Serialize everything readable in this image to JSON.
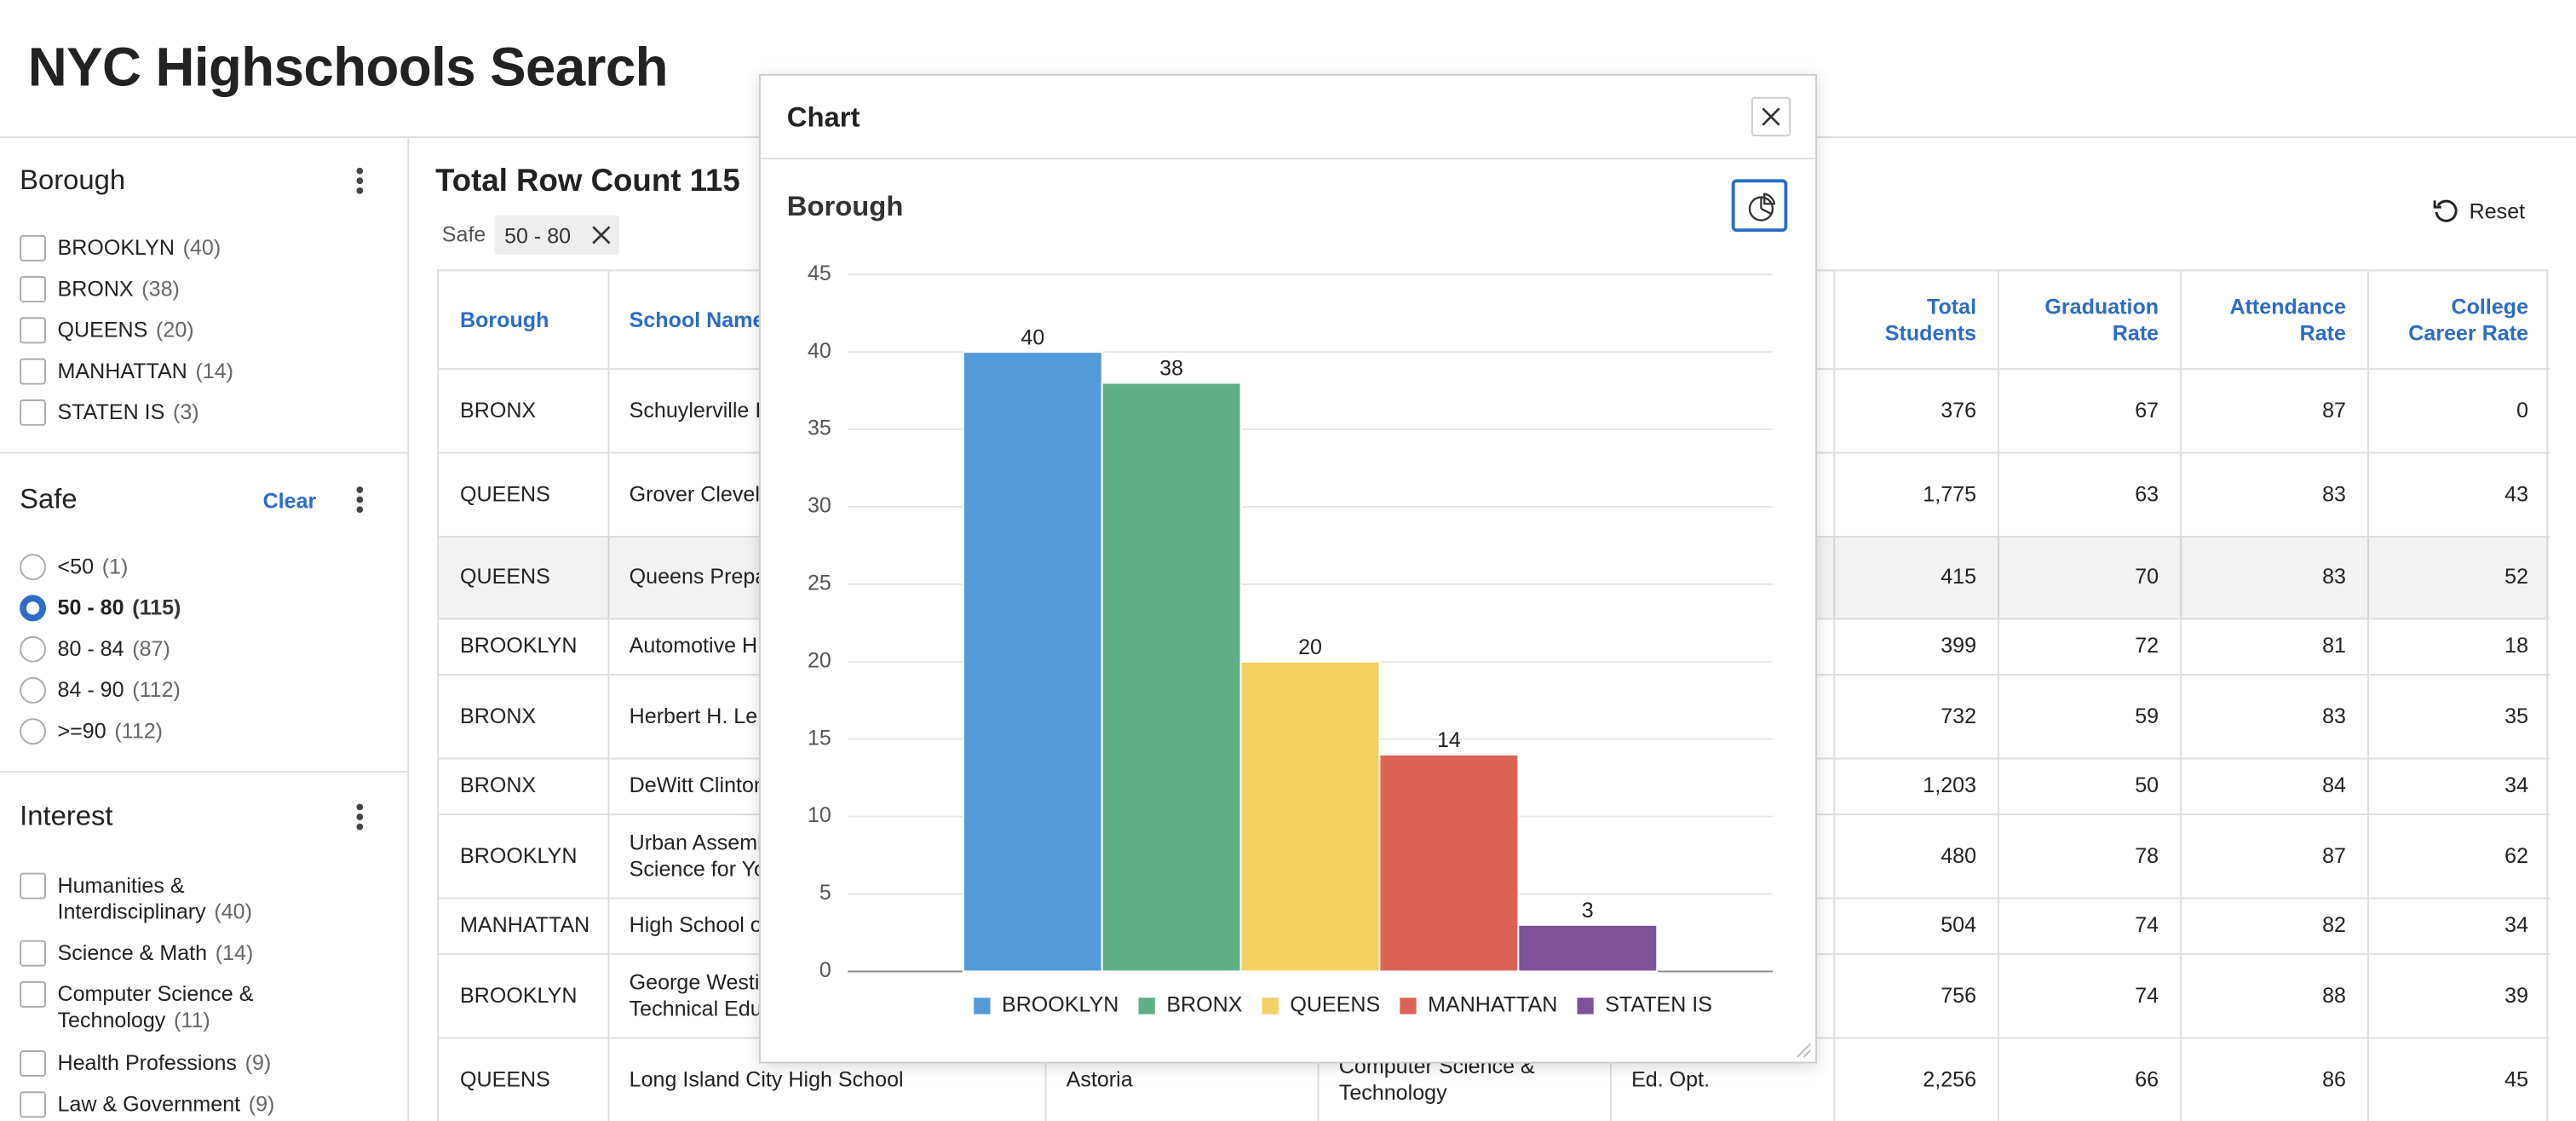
{
  "header": {
    "title": "NYC Highschools Search"
  },
  "facets": [
    {
      "title": "Borough",
      "options": [
        {
          "label": "BROOKLYN",
          "count": "(40)"
        },
        {
          "label": "BRONX",
          "count": "(38)"
        },
        {
          "label": "QUEENS",
          "count": "(20)"
        },
        {
          "label": "MANHATTAN",
          "count": "(14)"
        },
        {
          "label": "STATEN IS",
          "count": "(3)"
        }
      ]
    },
    {
      "title": "Safe",
      "action": "Clear",
      "selected": 1,
      "options": [
        {
          "label": "<50",
          "count": "(1)"
        },
        {
          "label": "50 - 80",
          "count": "(115)"
        },
        {
          "label": "80 - 84",
          "count": "(87)"
        },
        {
          "label": "84 - 90",
          "count": "(112)"
        },
        {
          "label": ">=90",
          "count": "(112)"
        }
      ]
    },
    {
      "title": "Interest",
      "options": [
        {
          "label": "Humanities & Interdisciplinary",
          "count": "(40)"
        },
        {
          "label": "Science & Math",
          "count": "(14)"
        },
        {
          "label": "Computer Science & Technology",
          "count": "(11)"
        },
        {
          "label": "Health Professions",
          "count": "(9)"
        },
        {
          "label": "Law & Government",
          "count": "(9)"
        }
      ]
    }
  ],
  "results": {
    "count_label": "Total Row Count 115",
    "filter_name": "Safe",
    "filter_value": "50 - 80",
    "reset": "Reset"
  },
  "table": {
    "columns": [
      "Borough",
      "School Name",
      "Total\nStudents",
      "Graduation\nRate",
      "Attendance\nRate",
      "College\nCareer Rate"
    ],
    "rows": [
      [
        "BRONX",
        "Schuylerville I",
        "376",
        "67",
        "87",
        "0"
      ],
      [
        "QUEENS",
        "Grover Clevela",
        "1,775",
        "63",
        "83",
        "43"
      ],
      [
        "QUEENS",
        "Queens Prepa",
        "415",
        "70",
        "83",
        "52"
      ],
      [
        "BROOKLYN",
        "Automotive H",
        "399",
        "72",
        "81",
        "18"
      ],
      [
        "BRONX",
        "Herbert H. Le",
        "732",
        "59",
        "83",
        "35"
      ],
      [
        "BRONX",
        "DeWitt Clinton",
        "1,203",
        "50",
        "84",
        "34"
      ],
      [
        "BROOKLYN",
        "Urban Assembl\nScience for Yo",
        "480",
        "78",
        "87",
        "62"
      ],
      [
        "MANHATTAN",
        "High School o",
        "504",
        "74",
        "82",
        "34"
      ],
      [
        "BROOKLYN",
        "George Westi\nTechnical Edu",
        "756",
        "74",
        "88",
        "39"
      ],
      [
        "QUEENS",
        "Long Island City High School",
        "2,256",
        "66",
        "86",
        "45"
      ]
    ],
    "last_row_hidden_cells": [
      "Astoria",
      "Computer Science &\nTechnology",
      "Ed. Opt."
    ]
  },
  "dialog": {
    "title": "Chart"
  },
  "chart_data": {
    "type": "bar",
    "title": "Borough",
    "categories": [
      "BROOKLYN",
      "BRONX",
      "QUEENS",
      "MANHATTAN",
      "STATEN IS"
    ],
    "values": [
      40,
      38,
      20,
      14,
      3
    ],
    "colors": [
      "#529bd8",
      "#5fae87",
      "#f3d062",
      "#dc6456",
      "#7e519b"
    ],
    "ylim": [
      0,
      45
    ],
    "yticks": [
      0,
      5,
      10,
      15,
      20,
      25,
      30,
      35,
      40,
      45
    ],
    "grid": true,
    "legend": "bottom"
  }
}
